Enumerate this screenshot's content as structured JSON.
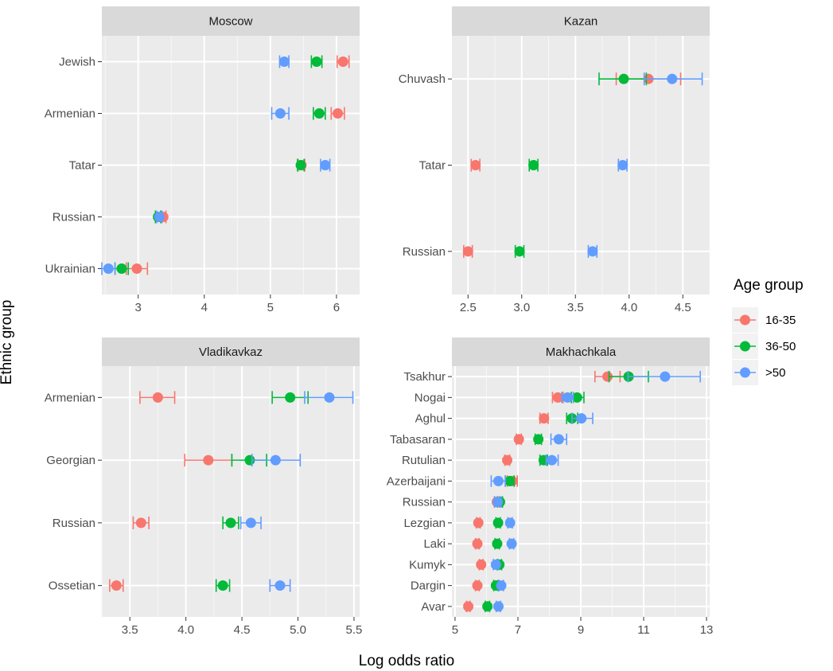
{
  "figure": {
    "xlabel": "Log odds ratio",
    "ylabel": "Ethnic group",
    "legend": {
      "title": "Age group",
      "placement": "right",
      "entries": [
        {
          "label": "16-35",
          "color": "#F8766D"
        },
        {
          "label": "36-50",
          "color": "#00BA38"
        },
        {
          "label": ">50",
          "color": "#619CFF"
        }
      ]
    }
  },
  "chart_data": [
    {
      "type": "scatter",
      "title": "Moscow",
      "xlim": [
        2.45,
        6.35
      ],
      "xticks": [
        "3",
        "4",
        "5",
        "6"
      ],
      "xtick_values": [
        3,
        4,
        5,
        6
      ],
      "categories": [
        "Jewish",
        "Armenian",
        "Tatar",
        "Russian",
        "Ukrainian"
      ],
      "series": [
        {
          "name": "16-35",
          "values": [
            {
              "x": 6.1,
              "lo": 6.01,
              "hi": 6.19
            },
            {
              "x": 6.02,
              "lo": 5.92,
              "hi": 6.12
            },
            {
              "x": 5.47,
              "lo": 5.42,
              "hi": 5.52
            },
            {
              "x": 3.38,
              "lo": 3.34,
              "hi": 3.42
            },
            {
              "x": 2.98,
              "lo": 2.82,
              "hi": 3.14
            }
          ]
        },
        {
          "name": "36-50",
          "values": [
            {
              "x": 5.7,
              "lo": 5.62,
              "hi": 5.78
            },
            {
              "x": 5.74,
              "lo": 5.65,
              "hi": 5.83
            },
            {
              "x": 5.46,
              "lo": 5.41,
              "hi": 5.51
            },
            {
              "x": 3.3,
              "lo": 3.26,
              "hi": 3.34
            },
            {
              "x": 2.75,
              "lo": 2.65,
              "hi": 2.85
            }
          ]
        },
        {
          "name": ">50",
          "values": [
            {
              "x": 5.21,
              "lo": 5.14,
              "hi": 5.28
            },
            {
              "x": 5.15,
              "lo": 5.02,
              "hi": 5.28
            },
            {
              "x": 5.83,
              "lo": 5.76,
              "hi": 5.9
            },
            {
              "x": 3.32,
              "lo": 3.28,
              "hi": 3.36
            },
            {
              "x": 2.55,
              "lo": 2.45,
              "hi": 2.65
            }
          ]
        }
      ]
    },
    {
      "type": "scatter",
      "title": "Kazan",
      "xlim": [
        2.35,
        4.75
      ],
      "xticks": [
        "2.5",
        "3.0",
        "3.5",
        "4.0",
        "4.5"
      ],
      "xtick_values": [
        2.5,
        3.0,
        3.5,
        4.0,
        4.5
      ],
      "categories": [
        "Chuvash",
        "Tatar",
        "Russian"
      ],
      "series": [
        {
          "name": "16-35",
          "values": [
            {
              "x": 4.18,
              "lo": 3.88,
              "hi": 4.48
            },
            {
              "x": 2.57,
              "lo": 2.53,
              "hi": 2.61
            },
            {
              "x": 2.5,
              "lo": 2.46,
              "hi": 2.54
            }
          ]
        },
        {
          "name": "36-50",
          "values": [
            {
              "x": 3.95,
              "lo": 3.72,
              "hi": 4.16
            },
            {
              "x": 3.11,
              "lo": 3.07,
              "hi": 3.15
            },
            {
              "x": 2.98,
              "lo": 2.94,
              "hi": 3.02
            }
          ]
        },
        {
          "name": ">50",
          "values": [
            {
              "x": 4.4,
              "lo": 4.14,
              "hi": 4.68
            },
            {
              "x": 3.94,
              "lo": 3.9,
              "hi": 3.98
            },
            {
              "x": 3.66,
              "lo": 3.62,
              "hi": 3.7
            }
          ]
        }
      ]
    },
    {
      "type": "scatter",
      "title": "Vladikavkaz",
      "xlim": [
        3.25,
        5.55
      ],
      "xticks": [
        "3.5",
        "4.0",
        "4.5",
        "5.0",
        "5.5"
      ],
      "xtick_values": [
        3.5,
        4.0,
        4.5,
        5.0,
        5.5
      ],
      "categories": [
        "Armenian",
        "Georgian",
        "Russian",
        "Ossetian"
      ],
      "series": [
        {
          "name": "16-35",
          "values": [
            {
              "x": 3.75,
              "lo": 3.59,
              "hi": 3.9
            },
            {
              "x": 4.2,
              "lo": 3.99,
              "hi": 4.41
            },
            {
              "x": 3.6,
              "lo": 3.53,
              "hi": 3.67
            },
            {
              "x": 3.38,
              "lo": 3.32,
              "hi": 3.44
            }
          ]
        },
        {
          "name": "36-50",
          "values": [
            {
              "x": 4.93,
              "lo": 4.77,
              "hi": 5.09
            },
            {
              "x": 4.57,
              "lo": 4.41,
              "hi": 4.72
            },
            {
              "x": 4.4,
              "lo": 4.33,
              "hi": 4.47
            },
            {
              "x": 4.33,
              "lo": 4.27,
              "hi": 4.39
            }
          ]
        },
        {
          "name": ">50",
          "values": [
            {
              "x": 5.28,
              "lo": 5.06,
              "hi": 5.49
            },
            {
              "x": 4.8,
              "lo": 4.59,
              "hi": 5.02
            },
            {
              "x": 4.58,
              "lo": 4.49,
              "hi": 4.67
            },
            {
              "x": 4.84,
              "lo": 4.75,
              "hi": 4.93
            }
          ]
        }
      ]
    },
    {
      "type": "scatter",
      "title": "Makhachkala",
      "xlim": [
        4.9,
        13.1
      ],
      "xticks": [
        "5",
        "7",
        "9",
        "11",
        "13"
      ],
      "xtick_values": [
        5,
        7,
        9,
        11,
        13
      ],
      "categories": [
        "Tsakhur",
        "Nogai",
        "Aghul",
        "Tabasaran",
        "Rutulian",
        "Azerbaijani",
        "Russian",
        "Lezgian",
        "Laki",
        "Kumyk",
        "Dargin",
        "Avar"
      ],
      "series": [
        {
          "name": "16-35",
          "values": [
            {
              "x": 9.85,
              "lo": 9.45,
              "hi": 10.25
            },
            {
              "x": 8.27,
              "lo": 8.1,
              "hi": 8.44
            },
            {
              "x": 7.83,
              "lo": 7.7,
              "hi": 7.96
            },
            {
              "x": 7.03,
              "lo": 6.95,
              "hi": 7.11
            },
            {
              "x": 6.66,
              "lo": 6.58,
              "hi": 6.74
            },
            {
              "x": 6.82,
              "lo": 6.66,
              "hi": 6.98
            },
            {
              "x": 6.33,
              "lo": 6.25,
              "hi": 6.41
            },
            {
              "x": 5.74,
              "lo": 5.68,
              "hi": 5.8
            },
            {
              "x": 5.71,
              "lo": 5.65,
              "hi": 5.77
            },
            {
              "x": 5.83,
              "lo": 5.77,
              "hi": 5.89
            },
            {
              "x": 5.71,
              "lo": 5.65,
              "hi": 5.77
            },
            {
              "x": 5.42,
              "lo": 5.36,
              "hi": 5.48
            }
          ]
        },
        {
          "name": "36-50",
          "values": [
            {
              "x": 10.52,
              "lo": 9.9,
              "hi": 11.15
            },
            {
              "x": 8.88,
              "lo": 8.7,
              "hi": 9.1
            },
            {
              "x": 8.72,
              "lo": 8.55,
              "hi": 8.9
            },
            {
              "x": 7.65,
              "lo": 7.55,
              "hi": 7.75
            },
            {
              "x": 7.82,
              "lo": 7.7,
              "hi": 7.94
            },
            {
              "x": 6.74,
              "lo": 6.6,
              "hi": 6.88
            },
            {
              "x": 6.43,
              "lo": 6.35,
              "hi": 6.51
            },
            {
              "x": 6.37,
              "lo": 6.3,
              "hi": 6.44
            },
            {
              "x": 6.34,
              "lo": 6.27,
              "hi": 6.41
            },
            {
              "x": 6.41,
              "lo": 6.34,
              "hi": 6.48
            },
            {
              "x": 6.3,
              "lo": 6.23,
              "hi": 6.37
            },
            {
              "x": 6.03,
              "lo": 5.96,
              "hi": 6.1
            }
          ]
        },
        {
          "name": ">50",
          "values": [
            {
              "x": 11.68,
              "lo": 10.5,
              "hi": 12.8
            },
            {
              "x": 8.58,
              "lo": 8.4,
              "hi": 8.76
            },
            {
              "x": 9.02,
              "lo": 8.72,
              "hi": 9.38
            },
            {
              "x": 8.3,
              "lo": 8.05,
              "hi": 8.55
            },
            {
              "x": 8.08,
              "lo": 7.9,
              "hi": 8.28
            },
            {
              "x": 6.38,
              "lo": 6.15,
              "hi": 6.6
            },
            {
              "x": 6.36,
              "lo": 6.26,
              "hi": 6.46
            },
            {
              "x": 6.75,
              "lo": 6.68,
              "hi": 6.82
            },
            {
              "x": 6.8,
              "lo": 6.73,
              "hi": 6.87
            },
            {
              "x": 6.3,
              "lo": 6.22,
              "hi": 6.38
            },
            {
              "x": 6.47,
              "lo": 6.4,
              "hi": 6.54
            },
            {
              "x": 6.38,
              "lo": 6.31,
              "hi": 6.45
            }
          ]
        }
      ]
    }
  ]
}
